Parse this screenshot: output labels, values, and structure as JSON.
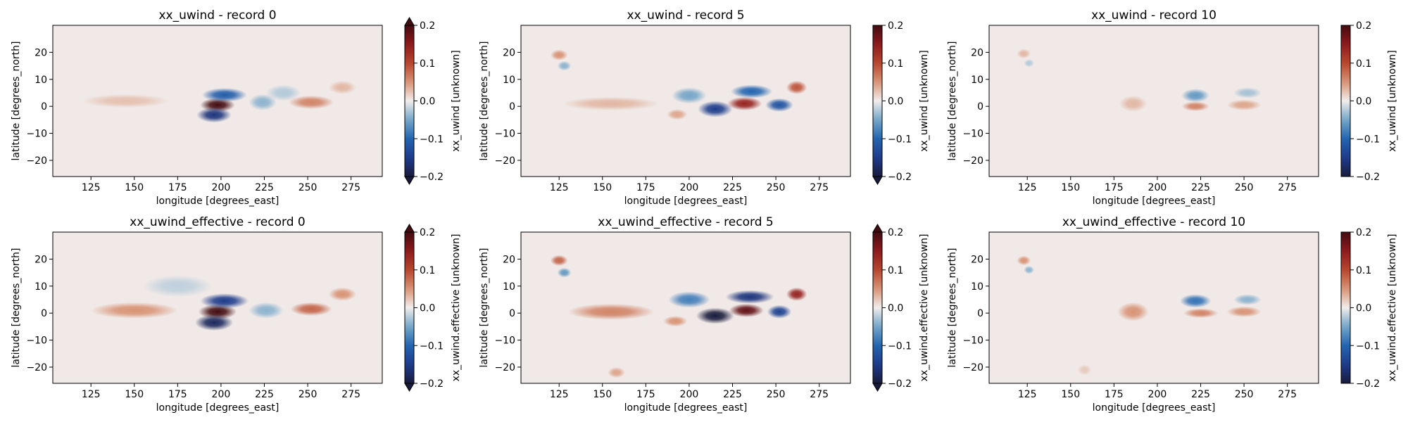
{
  "figure": {
    "rows": 2,
    "cols": 3
  },
  "chart_data": [
    {
      "type": "heatmap",
      "title": "xx_uwind - record 0",
      "xlabel": "longitude [degrees_east]",
      "ylabel": "latitude [degrees_north]",
      "xlim": [
        103,
        293
      ],
      "ylim": [
        -26,
        30
      ],
      "xticks": [
        125,
        150,
        175,
        200,
        225,
        250,
        275
      ],
      "yticks": [
        -20,
        -10,
        0,
        10,
        20
      ],
      "colorbar": {
        "label": "xx_uwind [unknown]",
        "range": [
          -0.2,
          0.2
        ],
        "ticks": [
          -0.2,
          -0.1,
          0.0,
          0.1,
          0.2
        ],
        "extend": "both",
        "colormap": "balance"
      },
      "features": [
        {
          "lon": 198,
          "lat": 0.5,
          "value": 0.22,
          "lon_width": 10,
          "lat_width": 2.6
        },
        {
          "lon": 196,
          "lat": -3.2,
          "value": -0.16,
          "lon_width": 10,
          "lat_width": 2.8
        },
        {
          "lon": 202,
          "lat": 4.2,
          "value": -0.11,
          "lon_width": 13,
          "lat_width": 2.6
        },
        {
          "lon": 224,
          "lat": 1.5,
          "value": -0.04,
          "lon_width": 8,
          "lat_width": 3
        },
        {
          "lon": 252,
          "lat": 1.5,
          "value": 0.06,
          "lon_width": 13,
          "lat_width": 2.5
        },
        {
          "lon": 270,
          "lat": 7,
          "value": 0.03,
          "lon_width": 8,
          "lat_width": 2.5
        },
        {
          "lon": 145,
          "lat": 2,
          "value": 0.025,
          "lon_width": 25,
          "lat_width": 2.5
        },
        {
          "lon": 236,
          "lat": 5,
          "value": -0.025,
          "lon_width": 10,
          "lat_width": 3
        }
      ]
    },
    {
      "type": "heatmap",
      "title": "xx_uwind - record 5",
      "xlabel": "longitude [degrees_east]",
      "ylabel": "latitude [degrees_north]",
      "xlim": [
        103,
        293
      ],
      "ylim": [
        -26,
        30
      ],
      "xticks": [
        125,
        150,
        175,
        200,
        225,
        250,
        275
      ],
      "yticks": [
        -20,
        -10,
        0,
        10,
        20
      ],
      "colorbar": {
        "label": "xx_uwind [unknown]",
        "range": [
          -0.2,
          0.2
        ],
        "ticks": [
          -0.2,
          -0.1,
          0.0,
          0.1,
          0.2
        ],
        "extend": "min",
        "colormap": "balance"
      },
      "features": [
        {
          "lon": 215,
          "lat": -1,
          "value": -0.15,
          "lon_width": 10,
          "lat_width": 3
        },
        {
          "lon": 232,
          "lat": 1,
          "value": 0.14,
          "lon_width": 10,
          "lat_width": 2.5
        },
        {
          "lon": 252,
          "lat": 0.5,
          "value": -0.12,
          "lon_width": 8,
          "lat_width": 2.5
        },
        {
          "lon": 262,
          "lat": 7,
          "value": 0.09,
          "lon_width": 6,
          "lat_width": 2.5
        },
        {
          "lon": 236,
          "lat": 5.5,
          "value": -0.1,
          "lon_width": 12,
          "lat_width": 2.5
        },
        {
          "lon": 200,
          "lat": 4,
          "value": -0.05,
          "lon_width": 10,
          "lat_width": 3
        },
        {
          "lon": 125,
          "lat": 19,
          "value": 0.05,
          "lon_width": 5,
          "lat_width": 2
        },
        {
          "lon": 128,
          "lat": 15,
          "value": -0.04,
          "lon_width": 4,
          "lat_width": 1.8
        },
        {
          "lon": 155,
          "lat": 1,
          "value": 0.03,
          "lon_width": 28,
          "lat_width": 2.5
        },
        {
          "lon": 193,
          "lat": -3,
          "value": 0.04,
          "lon_width": 6,
          "lat_width": 2
        }
      ]
    },
    {
      "type": "heatmap",
      "title": "xx_uwind - record 10",
      "xlabel": "longitude [degrees_east]",
      "ylabel": "latitude [degrees_north]",
      "xlim": [
        103,
        293
      ],
      "ylim": [
        -26,
        30
      ],
      "xticks": [
        125,
        150,
        175,
        200,
        225,
        250,
        275
      ],
      "yticks": [
        -20,
        -10,
        0,
        10,
        20
      ],
      "colorbar": {
        "label": "xx_uwind [unknown]",
        "range": [
          -0.2,
          0.2
        ],
        "ticks": [
          -0.2,
          -0.1,
          0.0,
          0.1,
          0.2
        ],
        "extend": "neither",
        "colormap": "balance"
      },
      "features": [
        {
          "lon": 222,
          "lat": 4,
          "value": -0.06,
          "lon_width": 8,
          "lat_width": 2.5
        },
        {
          "lon": 222,
          "lat": 0,
          "value": 0.06,
          "lon_width": 8,
          "lat_width": 1.8
        },
        {
          "lon": 250,
          "lat": 0.5,
          "value": 0.04,
          "lon_width": 10,
          "lat_width": 2
        },
        {
          "lon": 252,
          "lat": 5,
          "value": -0.03,
          "lon_width": 8,
          "lat_width": 2
        },
        {
          "lon": 186,
          "lat": 1,
          "value": 0.03,
          "lon_width": 8,
          "lat_width": 3
        },
        {
          "lon": 123,
          "lat": 19.5,
          "value": 0.03,
          "lon_width": 4,
          "lat_width": 1.8
        },
        {
          "lon": 126,
          "lat": 16,
          "value": -0.025,
          "lon_width": 3,
          "lat_width": 1.5
        }
      ]
    },
    {
      "type": "heatmap",
      "title": "xx_uwind_effective - record 0",
      "xlabel": "longitude [degrees_east]",
      "ylabel": "latitude [degrees_north]",
      "xlim": [
        103,
        293
      ],
      "ylim": [
        -26,
        30
      ],
      "xticks": [
        125,
        150,
        175,
        200,
        225,
        250,
        275
      ],
      "yticks": [
        -20,
        -10,
        0,
        10,
        20
      ],
      "colorbar": {
        "label": "xx_uwind.effective [unknown]",
        "range": [
          -0.2,
          0.2
        ],
        "ticks": [
          -0.2,
          -0.1,
          0.0,
          0.1,
          0.2
        ],
        "extend": "both",
        "colormap": "balance"
      },
      "features": [
        {
          "lon": 198,
          "lat": 0.5,
          "value": 0.22,
          "lon_width": 11,
          "lat_width": 2.8
        },
        {
          "lon": 196,
          "lat": -3.5,
          "value": -0.18,
          "lon_width": 11,
          "lat_width": 3
        },
        {
          "lon": 202,
          "lat": 4.5,
          "value": -0.15,
          "lon_width": 14,
          "lat_width": 2.8
        },
        {
          "lon": 150,
          "lat": 1,
          "value": 0.05,
          "lon_width": 25,
          "lat_width": 3
        },
        {
          "lon": 252,
          "lat": 1.5,
          "value": 0.08,
          "lon_width": 12,
          "lat_width": 2.5
        },
        {
          "lon": 270,
          "lat": 7,
          "value": 0.05,
          "lon_width": 8,
          "lat_width": 2.5
        },
        {
          "lon": 226,
          "lat": 1,
          "value": -0.04,
          "lon_width": 10,
          "lat_width": 3
        },
        {
          "lon": 175,
          "lat": 10,
          "value": -0.02,
          "lon_width": 20,
          "lat_width": 4
        }
      ]
    },
    {
      "type": "heatmap",
      "title": "xx_uwind_effective - record 5",
      "xlabel": "longitude [degrees_east]",
      "ylabel": "latitude [degrees_north]",
      "xlim": [
        103,
        293
      ],
      "ylim": [
        -26,
        30
      ],
      "xticks": [
        125,
        150,
        175,
        200,
        225,
        250,
        275
      ],
      "yticks": [
        -20,
        -10,
        0,
        10,
        20
      ],
      "colorbar": {
        "label": "xx_uwind.effective [unknown]",
        "range": [
          -0.2,
          0.2
        ],
        "ticks": [
          -0.2,
          -0.1,
          0.0,
          0.1,
          0.2
        ],
        "extend": "both",
        "colormap": "balance"
      },
      "features": [
        {
          "lon": 215,
          "lat": -1,
          "value": -0.2,
          "lon_width": 11,
          "lat_width": 3
        },
        {
          "lon": 233,
          "lat": 1,
          "value": 0.18,
          "lon_width": 10,
          "lat_width": 2.5
        },
        {
          "lon": 252,
          "lat": 0.5,
          "value": -0.14,
          "lon_width": 7,
          "lat_width": 2.5
        },
        {
          "lon": 262,
          "lat": 7,
          "value": 0.14,
          "lon_width": 6,
          "lat_width": 2.5
        },
        {
          "lon": 235,
          "lat": 6,
          "value": -0.16,
          "lon_width": 14,
          "lat_width": 2.5
        },
        {
          "lon": 200,
          "lat": 5,
          "value": -0.08,
          "lon_width": 12,
          "lat_width": 3
        },
        {
          "lon": 125,
          "lat": 19.5,
          "value": 0.08,
          "lon_width": 5,
          "lat_width": 2
        },
        {
          "lon": 128,
          "lat": 15,
          "value": -0.06,
          "lon_width": 4,
          "lat_width": 1.8
        },
        {
          "lon": 155,
          "lat": 0.5,
          "value": 0.06,
          "lon_width": 25,
          "lat_width": 3
        },
        {
          "lon": 158,
          "lat": -22,
          "value": 0.04,
          "lon_width": 5,
          "lat_width": 2
        },
        {
          "lon": 192,
          "lat": -3,
          "value": 0.05,
          "lon_width": 7,
          "lat_width": 2
        }
      ]
    },
    {
      "type": "heatmap",
      "title": "xx_uwind_effective - record 10",
      "xlabel": "longitude [degrees_east]",
      "ylabel": "latitude [degrees_north]",
      "xlim": [
        103,
        293
      ],
      "ylim": [
        -26,
        30
      ],
      "xticks": [
        125,
        150,
        175,
        200,
        225,
        250,
        275
      ],
      "yticks": [
        -20,
        -10,
        0,
        10,
        20
      ],
      "colorbar": {
        "label": "xx_uwind.effective [unknown]",
        "range": [
          -0.2,
          0.2
        ],
        "ticks": [
          -0.2,
          -0.1,
          0.0,
          0.1,
          0.2
        ],
        "extend": "neither",
        "colormap": "balance"
      },
      "features": [
        {
          "lon": 222,
          "lat": 4.5,
          "value": -0.09,
          "lon_width": 9,
          "lat_width": 2.5
        },
        {
          "lon": 225,
          "lat": 0,
          "value": 0.06,
          "lon_width": 10,
          "lat_width": 1.8
        },
        {
          "lon": 250,
          "lat": 0.5,
          "value": 0.05,
          "lon_width": 10,
          "lat_width": 2
        },
        {
          "lon": 252,
          "lat": 5,
          "value": -0.04,
          "lon_width": 8,
          "lat_width": 2
        },
        {
          "lon": 186,
          "lat": 0.5,
          "value": 0.05,
          "lon_width": 9,
          "lat_width": 3.5
        },
        {
          "lon": 123,
          "lat": 19.5,
          "value": 0.05,
          "lon_width": 4,
          "lat_width": 1.8
        },
        {
          "lon": 126,
          "lat": 16,
          "value": -0.04,
          "lon_width": 3,
          "lat_width": 1.5
        },
        {
          "lon": 158,
          "lat": -21,
          "value": 0.02,
          "lon_width": 4,
          "lat_width": 2
        }
      ]
    }
  ]
}
